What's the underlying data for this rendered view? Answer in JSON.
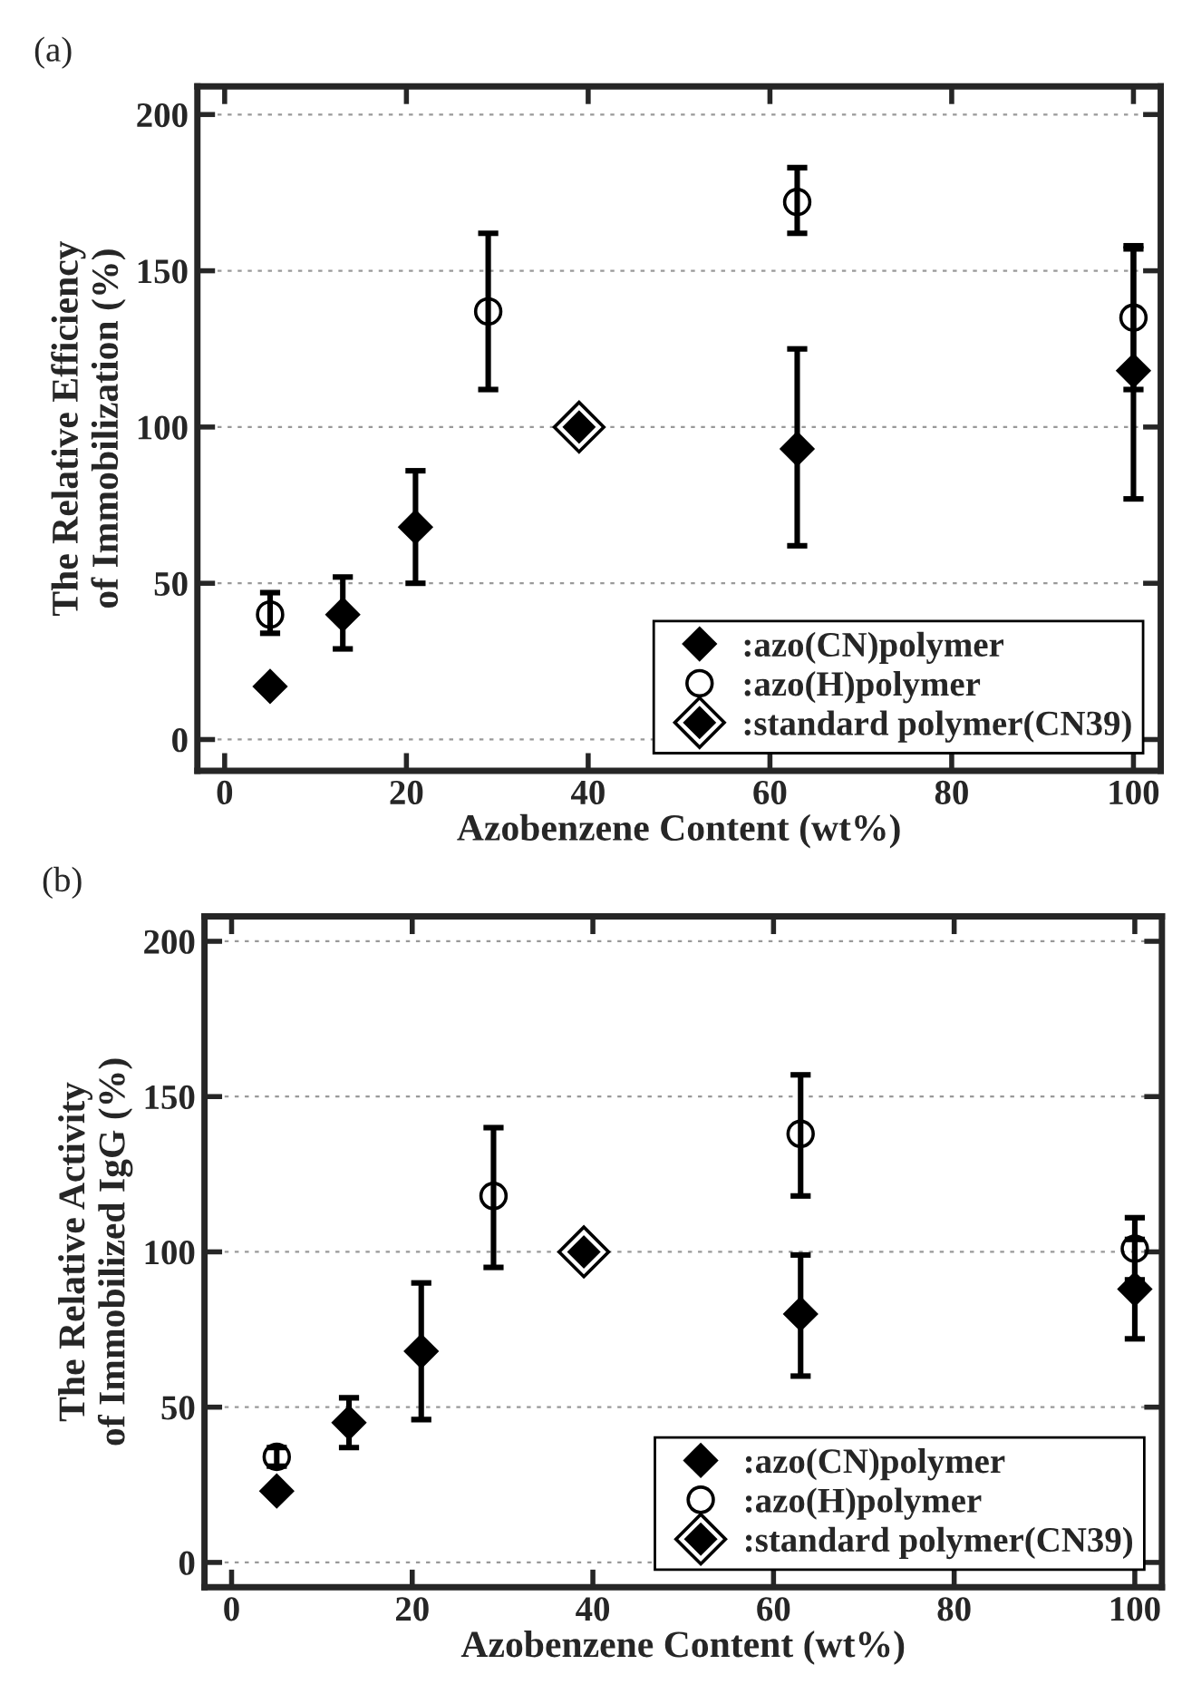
{
  "chart_data": [
    {
      "type": "scatter",
      "title": "(a)",
      "xlabel": "Azobenzene Content (wt%)",
      "ylabel": "The Relative Efficiency\nof Immobilization (%)",
      "xlim": [
        -3,
        103
      ],
      "ylim": [
        -10,
        209
      ],
      "xticks": [
        0,
        20,
        40,
        60,
        80,
        100
      ],
      "yticks": [
        0,
        50,
        100,
        150,
        200
      ],
      "grid": "y",
      "legend": "bottom right",
      "series": [
        {
          "name": ":azo(CN)polymer",
          "color": "#000000",
          "marker": "diamond",
          "x": [
            5,
            13,
            21,
            63,
            100
          ],
          "values": [
            17,
            40,
            68,
            93,
            118
          ],
          "errors": [
            null,
            [
              29,
              52
            ],
            [
              50,
              86
            ],
            [
              62,
              125
            ],
            [
              77,
              157
            ]
          ]
        },
        {
          "name": ":azo(H)polymer",
          "color": "#000000",
          "marker": "circle",
          "x": [
            5,
            29,
            63,
            100
          ],
          "values": [
            40,
            137,
            172,
            135
          ],
          "errors": [
            [
              34,
              47
            ],
            [
              112,
              162
            ],
            [
              162,
              183
            ],
            [
              112,
              158
            ]
          ]
        },
        {
          "name": ":standard polymer(CN39)",
          "color": "#000000",
          "marker": "diamond",
          "x": [
            39
          ],
          "values": [
            100
          ],
          "errors": [
            null
          ]
        }
      ]
    },
    {
      "type": "scatter",
      "title": "(b)",
      "xlabel": "Azobenzene Content (wt%)",
      "ylabel": "The Relative Activity\nof Immobilized IgG (%)",
      "xlim": [
        -3,
        103
      ],
      "ylim": [
        -8,
        208
      ],
      "xticks": [
        0,
        20,
        40,
        60,
        80,
        100
      ],
      "yticks": [
        0,
        50,
        100,
        150,
        200
      ],
      "grid": "y",
      "legend": "bottom right",
      "series": [
        {
          "name": ":azo(CN)polymer",
          "color": "#000000",
          "marker": "diamond",
          "x": [
            5,
            13,
            21,
            63,
            100
          ],
          "values": [
            23,
            45,
            68,
            80,
            88
          ],
          "errors": [
            null,
            [
              37,
              53
            ],
            [
              46,
              90
            ],
            [
              60,
              99
            ],
            [
              72,
              104
            ]
          ]
        },
        {
          "name": ":azo(H)polymer",
          "color": "#000000",
          "marker": "circle",
          "x": [
            5,
            29,
            63,
            100
          ],
          "values": [
            34,
            118,
            138,
            101
          ],
          "errors": [
            [
              31,
              37
            ],
            [
              95,
              140
            ],
            [
              118,
              157
            ],
            [
              91,
              111
            ]
          ]
        },
        {
          "name": ":standard polymer(CN39)",
          "color": "#000000",
          "marker": "diamond",
          "x": [
            39
          ],
          "values": [
            100
          ],
          "errors": [
            null
          ]
        }
      ]
    }
  ]
}
